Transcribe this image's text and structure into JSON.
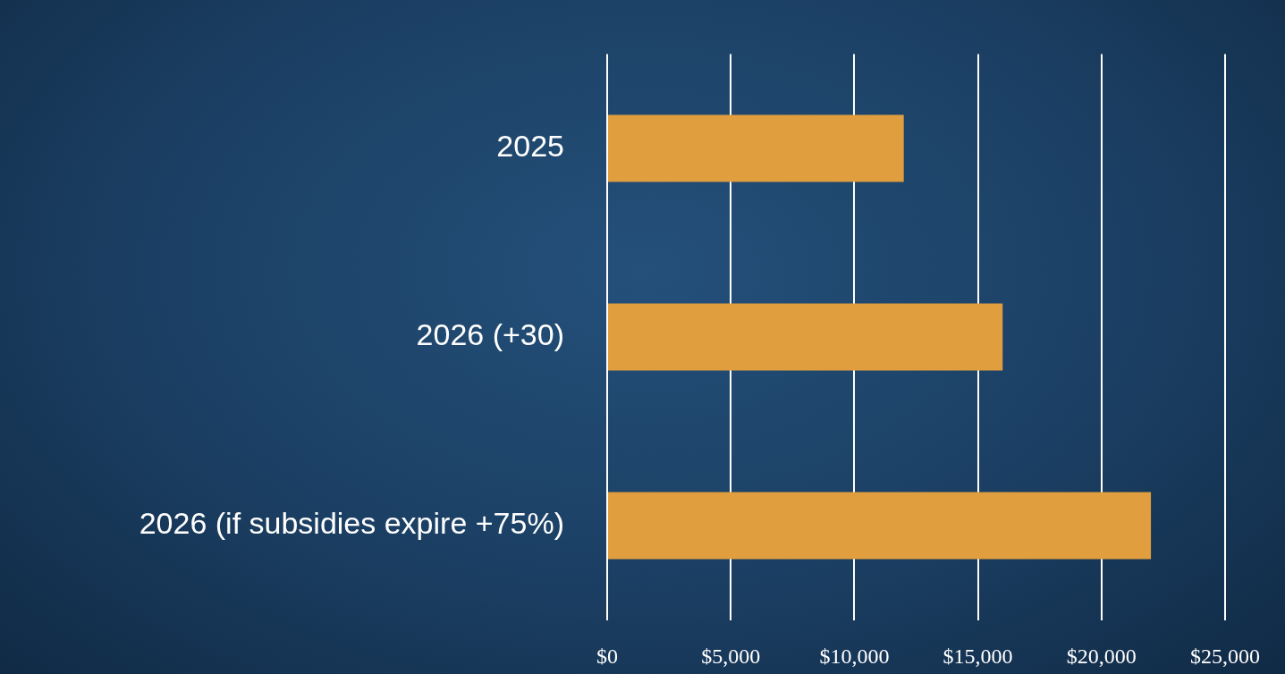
{
  "chart_data": {
    "type": "bar",
    "orientation": "horizontal",
    "categories": [
      "2025",
      "2026 (+30)",
      "2026 (if subsidies expire +75%)"
    ],
    "values": [
      12000,
      16000,
      22000
    ],
    "color": "#e09e3f",
    "xlim": [
      0,
      25000
    ],
    "xticks": [
      {
        "value": 0,
        "label": "$0"
      },
      {
        "value": 5000,
        "label": "$5,000"
      },
      {
        "value": 10000,
        "label": "$10,000"
      },
      {
        "value": 15000,
        "label": "$15,000"
      },
      {
        "value": 20000,
        "label": "$20,000"
      },
      {
        "value": 25000,
        "label": "$25,000"
      }
    ],
    "grid": "x"
  }
}
